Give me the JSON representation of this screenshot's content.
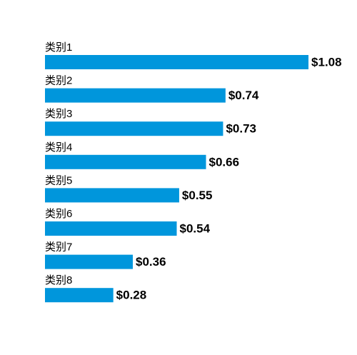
{
  "chart_data": {
    "type": "bar",
    "orientation": "horizontal",
    "categories": [
      "类别1",
      "类别2",
      "类别3",
      "类别4",
      "类别5",
      "类别6",
      "类别7",
      "类别8"
    ],
    "values": [
      1.08,
      0.74,
      0.73,
      0.66,
      0.55,
      0.54,
      0.36,
      0.28
    ],
    "value_labels": [
      "$1.08",
      "$0.74",
      "$0.73",
      "$0.66",
      "$0.55",
      "$0.54",
      "$0.36",
      "$0.28"
    ],
    "color": "#0096dc"
  }
}
